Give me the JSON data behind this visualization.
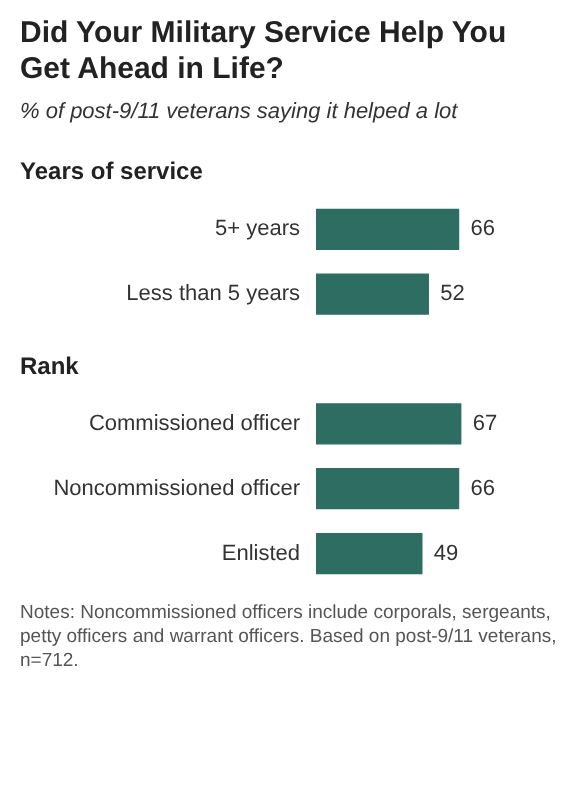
{
  "chart_data": {
    "type": "bar",
    "orientation": "horizontal",
    "title": "Did Your Military Service Help You Get Ahead in Life?",
    "subtitle": "% of post-9/11 veterans saying it helped a lot",
    "categories": [
      null,
      "5+ years",
      "Less than 5 years",
      null,
      "Commissioned officer",
      "Noncommissioned officer",
      "Enlisted"
    ],
    "values": [
      null,
      66,
      52,
      null,
      67,
      66,
      49
    ],
    "color": "#2e6e62",
    "data_labels": true,
    "annotations": [
      "Years of service",
      "Rank",
      "Notes: Noncommissioned officers include corporals, sergeants, petty officers and warrant officers. Based on post-9/11 veterans, n=712."
    ]
  }
}
